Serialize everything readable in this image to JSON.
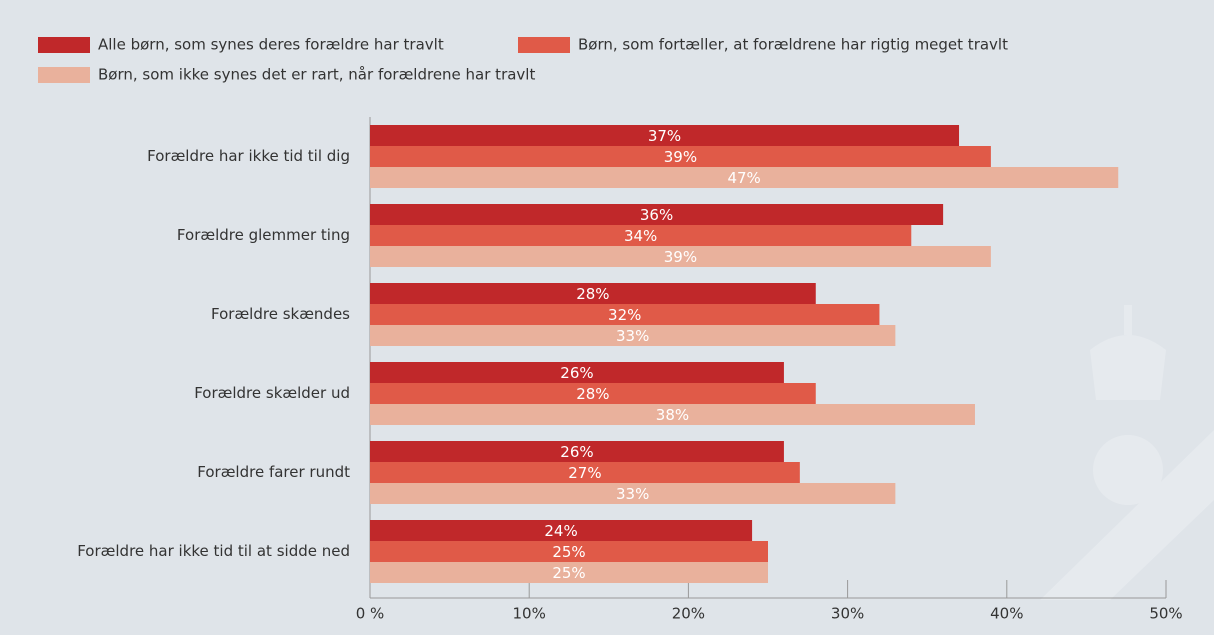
{
  "chart_data": {
    "type": "bar",
    "orientation": "horizontal",
    "categories": [
      "Forældre har ikke tid til dig",
      "Forældre glemmer ting",
      "Forældre skændes",
      "Forældre skælder ud",
      "Forældre farer rundt",
      "Forældre har ikke tid til at sidde ned"
    ],
    "series": [
      {
        "name": "Alle børn, som synes deres forældre har travlt",
        "color": "#c0282a",
        "values": [
          37,
          36,
          28,
          26,
          26,
          24
        ],
        "value_labels": [
          "37%",
          "36%",
          "28%",
          "26%",
          "26%",
          "24%"
        ]
      },
      {
        "name": "Børn, som fortæller, at forældrene har rigtig meget travlt",
        "color": "#e05a48",
        "values": [
          39,
          34,
          32,
          28,
          27,
          25
        ],
        "value_labels": [
          "39%",
          "34%",
          "32%",
          "28%",
          "27%",
          "25%"
        ]
      },
      {
        "name": "Børn, som ikke synes det er rart, når forældrene har travlt",
        "color": "#e9b19c",
        "values": [
          47,
          39,
          33,
          38,
          33,
          25
        ],
        "value_labels": [
          "47%",
          "39%",
          "33%",
          "38%",
          "33%",
          "25%"
        ]
      }
    ],
    "xlim": [
      0,
      50
    ],
    "xticks": [
      {
        "value": 0,
        "label": "0 %"
      },
      {
        "value": 10,
        "label": "10%"
      },
      {
        "value": 20,
        "label": "20%"
      },
      {
        "value": 30,
        "label": "30%"
      },
      {
        "value": 40,
        "label": "40%"
      },
      {
        "value": 50,
        "label": "50%"
      }
    ]
  }
}
